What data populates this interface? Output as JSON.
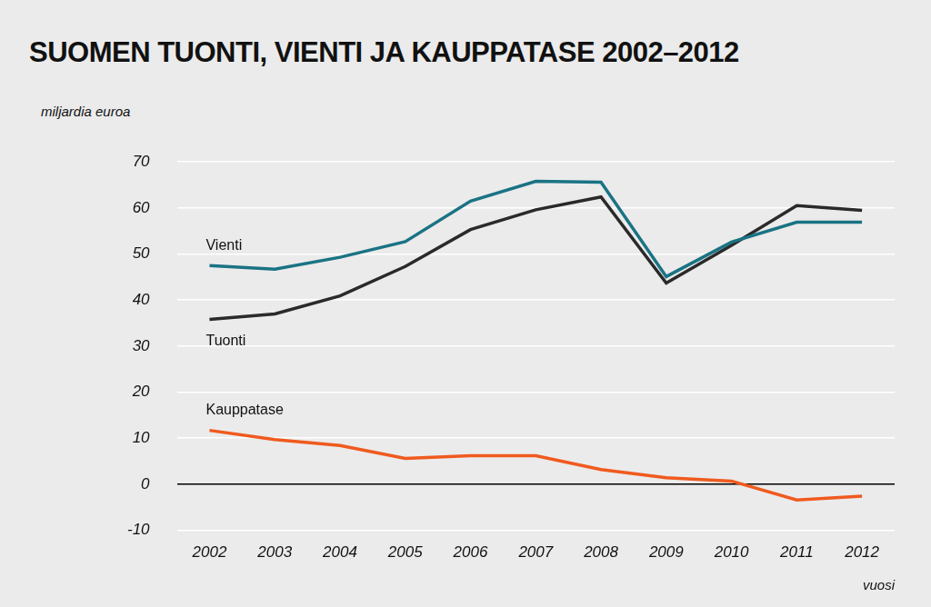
{
  "chart_data": {
    "type": "line",
    "title": "SUOMEN TUONTI, VIENTI JA KAUPPATASE 2002–2012",
    "y_label": "miljardia euroa",
    "x_label": "vuosi",
    "categories": [
      "2002",
      "2003",
      "2004",
      "2005",
      "2006",
      "2007",
      "2008",
      "2009",
      "2010",
      "2011",
      "2012"
    ],
    "series": [
      {
        "name": "Vienti",
        "color": "#1a7384",
        "values": [
          47.5,
          46.7,
          49.3,
          52.7,
          61.5,
          65.8,
          65.6,
          45.1,
          52.6,
          56.9,
          56.9
        ]
      },
      {
        "name": "Tuonti",
        "color": "#2a2a2a",
        "values": [
          35.8,
          37.0,
          40.9,
          47.3,
          55.3,
          59.6,
          62.4,
          43.7,
          51.9,
          60.5,
          59.5
        ]
      },
      {
        "name": "Kauppatase",
        "color": "#f05a1e",
        "values": [
          11.7,
          9.7,
          8.4,
          5.6,
          6.2,
          6.2,
          3.2,
          1.4,
          0.7,
          -3.4,
          -2.6
        ]
      }
    ],
    "ylim": [
      -10,
      70
    ],
    "yticks": [
      -10,
      0,
      10,
      20,
      30,
      40,
      50,
      60,
      70
    ],
    "grid": true
  }
}
